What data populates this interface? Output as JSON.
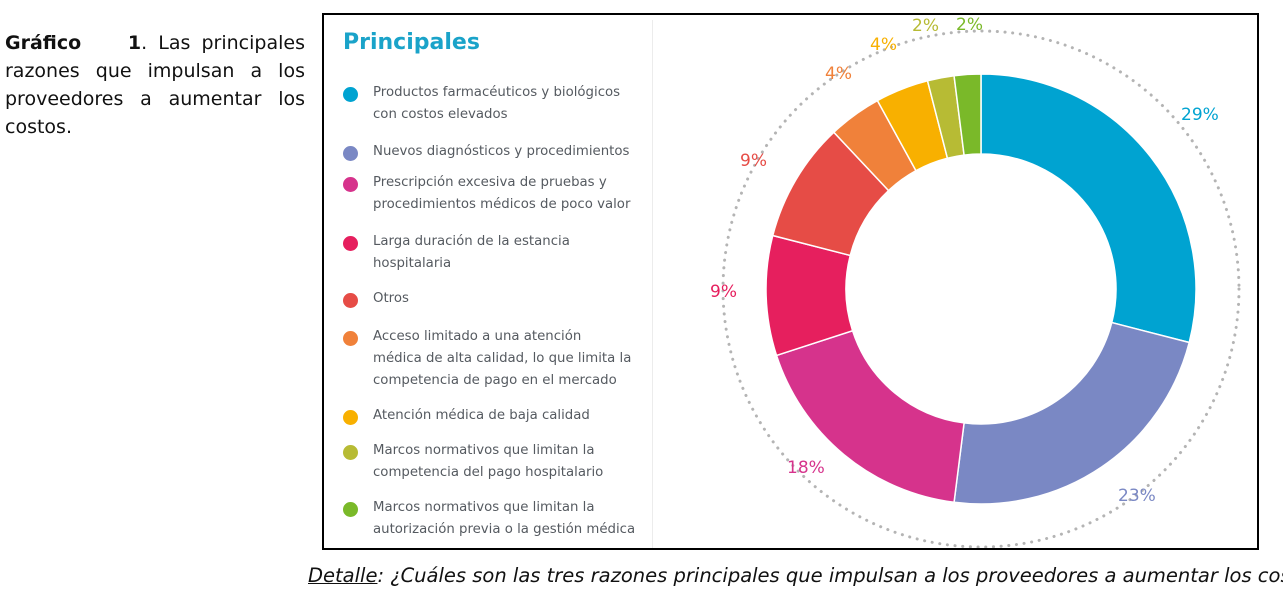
{
  "caption": {
    "label": "Gráfico",
    "number": "1",
    "text": ". Las principales razones que impulsan a los proveedores a aumentar los costos."
  },
  "detail": {
    "label": "Detalle",
    "text": ": ¿Cuáles son las tres razones principales que impulsan a los proveedores a aumentar los costos?"
  },
  "chart_data": {
    "type": "pie",
    "style": "donut",
    "legend_title": "Principales",
    "legend_position": "left",
    "categories": [
      "Productos farmacéuticos y biológicos con costos elevados",
      "Nuevos diagnósticos y procedimientos",
      "Prescripción excesiva de pruebas y procedimientos médicos de poco valor",
      "Larga duración de la estancia hospitalaria",
      "Otros",
      "Acceso limitado a una atención médica de alta calidad, lo que limita la competencia de pago en el mercado",
      "Atención médica de baja calidad",
      "Marcos normativos que limitan la competencia del pago hospitalario",
      "Marcos normativos  que limitan la autorización previa o la gestión médica"
    ],
    "legend_lines": [
      [
        "Productos farmacéuticos y biológicos",
        "con costos elevados"
      ],
      [
        "Nuevos diagnósticos y procedimientos"
      ],
      [
        "Prescripción excesiva de pruebas y",
        "procedimientos médicos de poco valor"
      ],
      [
        "Larga duración de la estancia",
        "hospitalaria"
      ],
      [
        "Otros"
      ],
      [
        "Acceso limitado a una atención",
        "médica de alta calidad, lo que limita la",
        "competencia de pago en el mercado"
      ],
      [
        "Atención médica de baja calidad"
      ],
      [
        "Marcos normativos que limitan la",
        "competencia del pago hospitalario"
      ],
      [
        "Marcos normativos  que limitan la",
        "autorización previa o la gestión médica"
      ]
    ],
    "values": [
      29,
      23,
      18,
      9,
      9,
      4,
      4,
      2,
      2
    ],
    "value_labels": [
      "29%",
      "23%",
      "18%",
      "9%",
      "9%",
      "4%",
      "4%",
      "2%",
      "2%"
    ],
    "colors": [
      "#00a3d1",
      "#7a88c4",
      "#d6338c",
      "#e61f5e",
      "#e64c46",
      "#f0813a",
      "#f8b000",
      "#b7bb34",
      "#7ab929"
    ],
    "label_colors": [
      "#00a3d1",
      "#7a88c4",
      "#d6338c",
      "#e61f5e",
      "#e64c46",
      "#f0813a",
      "#f8b000",
      "#b7bb34",
      "#7ab929"
    ]
  }
}
